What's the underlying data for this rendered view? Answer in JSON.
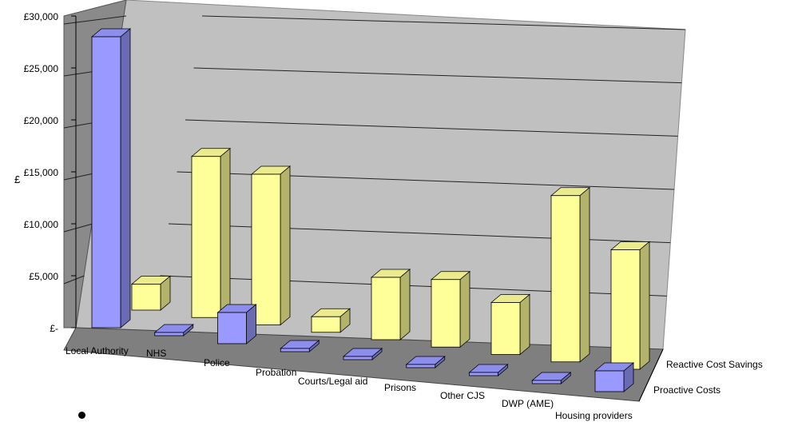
{
  "chart_data": {
    "type": "bar",
    "title": "",
    "xlabel": "",
    "ylabel": "£",
    "ylim": [
      0,
      30000
    ],
    "yticks": [
      0,
      5000,
      10000,
      15000,
      20000,
      25000,
      30000
    ],
    "ytick_labels": [
      "£-",
      "£5,000",
      "£10,000",
      "£15,000",
      "£20,000",
      "£25,000",
      "£30,000"
    ],
    "categories": [
      "Local Authority",
      "NHS",
      "Police",
      "Probation",
      "Courts/Legal aid",
      "Prisons",
      "Other CJS",
      "DWP (AME)",
      "Housing providers"
    ],
    "series": [
      {
        "name": "Proactive Costs",
        "values": [
          28000,
          0,
          3000,
          0,
          0,
          0,
          0,
          0,
          2000
        ]
      },
      {
        "name": "Reactive Cost Savings",
        "values": [
          2500,
          15500,
          14500,
          1500,
          6000,
          6500,
          5000,
          16000,
          11500
        ]
      }
    ],
    "grid": true,
    "legend": "depth-axis labels on right"
  },
  "colors": {
    "proactive": "#9999ff",
    "reactive": "#ffff99",
    "wall": "#c0c0c0",
    "floor": "#808080"
  }
}
